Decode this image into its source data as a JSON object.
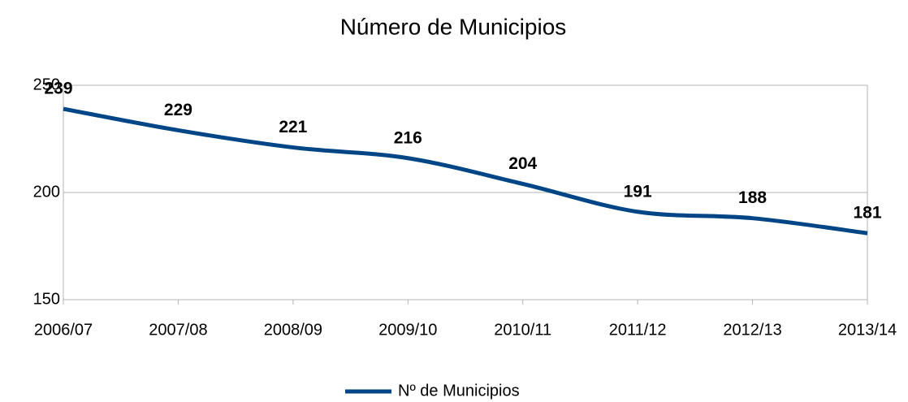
{
  "chart_data": {
    "type": "line",
    "title": "Número de Municipios",
    "categories": [
      "2006/07",
      "2007/08",
      "2008/09",
      "2009/10",
      "2010/11",
      "2011/12",
      "2012/13",
      "2013/14"
    ],
    "series": [
      {
        "name": "Nº de Municipios",
        "color": "#004586",
        "values": [
          239,
          229,
          221,
          216,
          204,
          191,
          188,
          181
        ]
      }
    ],
    "ylim": [
      150,
      250
    ],
    "yticks": [
      150,
      200,
      250
    ],
    "grid": true,
    "legend": "bottom"
  }
}
